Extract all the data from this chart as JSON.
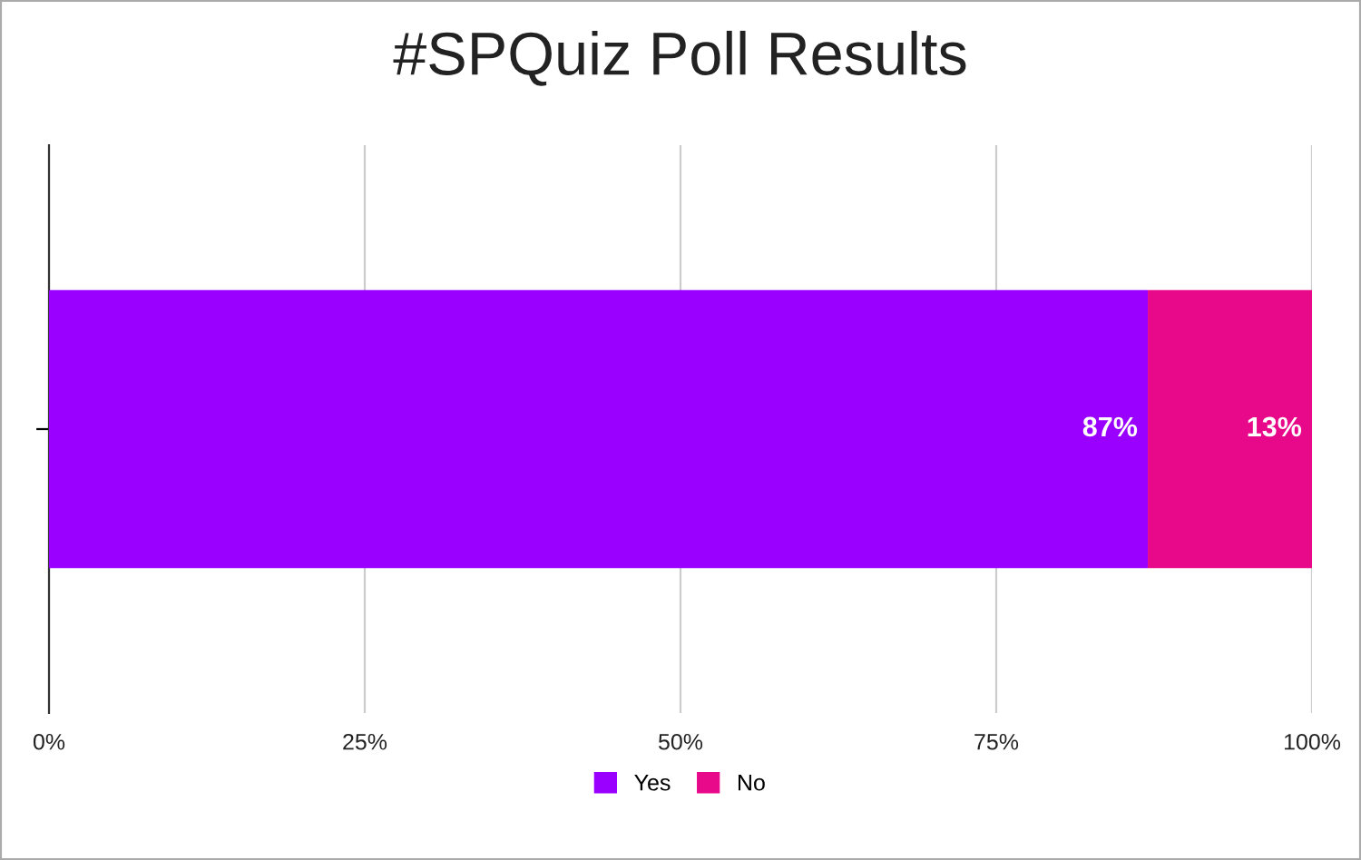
{
  "chart_data": {
    "type": "bar",
    "title": "#SPQuiz Poll Results",
    "orientation": "horizontal",
    "stacked": true,
    "categories": [
      null
    ],
    "series": [
      {
        "name": "Yes",
        "color": "#9900ff",
        "values": [
          87
        ],
        "value_labels": [
          "87%"
        ]
      },
      {
        "name": "No",
        "color": "#e8098a",
        "values": [
          13
        ],
        "value_labels": [
          "13%"
        ]
      }
    ],
    "xlim": [
      0,
      100
    ],
    "xticks": [
      {
        "value": 0,
        "label": "0%"
      },
      {
        "value": 25,
        "label": "25%"
      },
      {
        "value": 50,
        "label": "50%"
      },
      {
        "value": 75,
        "label": "75%"
      },
      {
        "value": 100,
        "label": "100%"
      }
    ],
    "grid": "x",
    "legend": "bottom"
  }
}
